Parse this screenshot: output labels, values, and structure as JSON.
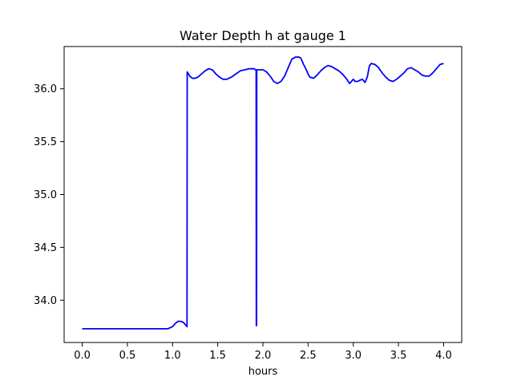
{
  "chart_data": {
    "type": "line",
    "title": "Water Depth h at gauge 1",
    "xlabel": "hours",
    "ylabel": "",
    "xlim": [
      -0.2,
      4.2
    ],
    "ylim": [
      33.6,
      36.4
    ],
    "xticks": [
      0.0,
      0.5,
      1.0,
      1.5,
      2.0,
      2.5,
      3.0,
      3.5,
      4.0
    ],
    "xtick_labels": [
      "0.0",
      "0.5",
      "1.0",
      "1.5",
      "2.0",
      "2.5",
      "3.0",
      "3.5",
      "4.0"
    ],
    "yticks": [
      34.0,
      34.5,
      35.0,
      35.5,
      36.0
    ],
    "ytick_labels": [
      "34.0",
      "34.5",
      "35.0",
      "35.5",
      "36.0"
    ],
    "grid": false,
    "legend": "none",
    "series": [
      {
        "color": "#0000ff",
        "x": [
          0.0,
          0.2,
          0.4,
          0.6,
          0.8,
          0.95,
          1.0,
          1.03,
          1.06,
          1.09,
          1.12,
          1.14,
          1.16,
          1.162,
          1.17,
          1.19,
          1.22,
          1.25,
          1.28,
          1.32,
          1.36,
          1.4,
          1.44,
          1.48,
          1.52,
          1.56,
          1.6,
          1.65,
          1.7,
          1.75,
          1.8,
          1.85,
          1.9,
          1.92,
          1.925,
          1.927,
          1.93,
          1.932,
          1.935,
          1.96,
          2.0,
          2.04,
          2.08,
          2.12,
          2.16,
          2.2,
          2.24,
          2.28,
          2.32,
          2.36,
          2.4,
          2.42,
          2.45,
          2.48,
          2.5,
          2.52,
          2.56,
          2.6,
          2.64,
          2.68,
          2.72,
          2.76,
          2.8,
          2.84,
          2.88,
          2.92,
          2.96,
          3.0,
          3.02,
          3.04,
          3.05,
          3.07,
          3.1,
          3.13,
          3.15,
          3.16,
          3.17,
          3.18,
          3.2,
          3.24,
          3.28,
          3.32,
          3.36,
          3.4,
          3.44,
          3.48,
          3.52,
          3.56,
          3.6,
          3.64,
          3.68,
          3.72,
          3.76,
          3.8,
          3.84,
          3.88,
          3.92,
          3.96,
          4.0
        ],
        "y": [
          33.73,
          33.73,
          33.73,
          33.73,
          33.73,
          33.73,
          33.75,
          33.78,
          33.8,
          33.8,
          33.79,
          33.77,
          33.75,
          36.16,
          36.15,
          36.12,
          36.1,
          36.1,
          36.11,
          36.14,
          36.17,
          36.19,
          36.18,
          36.14,
          36.11,
          36.09,
          36.09,
          36.11,
          36.14,
          36.17,
          36.18,
          36.19,
          36.19,
          36.18,
          36.18,
          33.76,
          33.76,
          36.18,
          36.18,
          36.18,
          36.18,
          36.16,
          36.12,
          36.07,
          36.05,
          36.07,
          36.12,
          36.2,
          36.28,
          36.3,
          36.3,
          36.29,
          36.23,
          36.18,
          36.14,
          36.11,
          36.1,
          36.13,
          36.17,
          36.2,
          36.22,
          36.21,
          36.19,
          36.17,
          36.14,
          36.1,
          36.05,
          36.09,
          36.07,
          36.07,
          36.07,
          36.08,
          36.09,
          36.06,
          36.1,
          36.13,
          36.18,
          36.22,
          36.24,
          36.23,
          36.2,
          36.15,
          36.11,
          36.08,
          36.07,
          36.09,
          36.12,
          36.15,
          36.19,
          36.2,
          36.18,
          36.16,
          36.13,
          36.12,
          36.12,
          36.15,
          36.19,
          36.23,
          36.24
        ]
      }
    ]
  }
}
